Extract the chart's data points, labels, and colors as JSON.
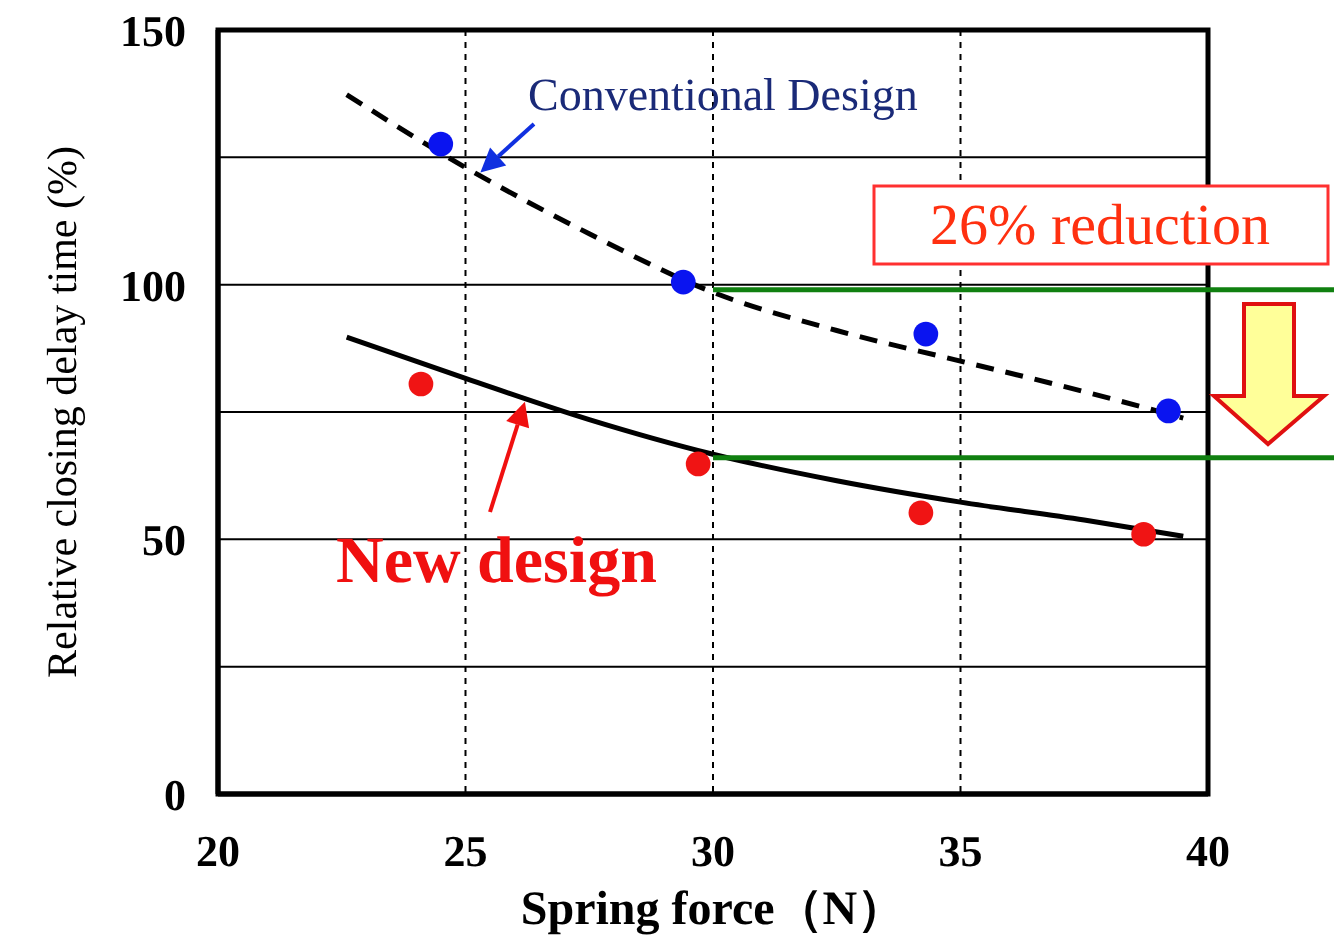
{
  "chart_data": {
    "type": "scatter",
    "xlabel": "Spring force（N）",
    "ylabel": "Relative closing delay time (%)",
    "xlim": [
      20,
      40
    ],
    "xticks": [
      20,
      25,
      30,
      35,
      40
    ],
    "ylim": [
      0,
      150
    ],
    "yticks": [
      0,
      {
        "value": 25,
        "label": null
      },
      50,
      {
        "value": 75,
        "label": null
      },
      100,
      {
        "value": 125,
        "label": null
      },
      150
    ],
    "grid": true,
    "legend": false,
    "marker": "circle",
    "series": [
      {
        "color": "#0a14f0",
        "x": [
          24.5,
          29.4,
          34.3,
          39.2
        ],
        "values": [
          127.6,
          100.5,
          90.3,
          75.2
        ]
      },
      {
        "color": "#f01414",
        "x": [
          24.1,
          29.7,
          34.2,
          38.7
        ],
        "values": [
          80.5,
          64.8,
          55.2,
          51
        ]
      },
      {
        "type": "line",
        "marker": "none",
        "color": "#000000",
        "line_style": "dashed",
        "x": [
          22.6,
          25,
          27.5,
          30,
          32.5,
          35,
          37.5,
          39.5
        ],
        "values": [
          137.3,
          123,
          110,
          98.5,
          91,
          85,
          79,
          73.8
        ]
      },
      {
        "type": "line",
        "marker": "none",
        "color": "#000000",
        "line_style": "solid",
        "x": [
          22.6,
          25,
          27.5,
          30,
          32.5,
          35,
          37.5,
          39.5
        ],
        "values": [
          89.7,
          81.6,
          73.5,
          66.7,
          61.5,
          57.3,
          53.8,
          50.6
        ]
      }
    ],
    "ref_lines": [
      {
        "axis": "y",
        "value": 99,
        "color": "#108010"
      },
      {
        "axis": "y",
        "value": 66,
        "color": "#108010"
      }
    ],
    "annotations": [
      {
        "text": "Conventional Design",
        "x": 25.3,
        "y": 122
      },
      "26% reduction",
      {
        "text": "New design",
        "x": 26.2,
        "y": 77
      }
    ]
  }
}
